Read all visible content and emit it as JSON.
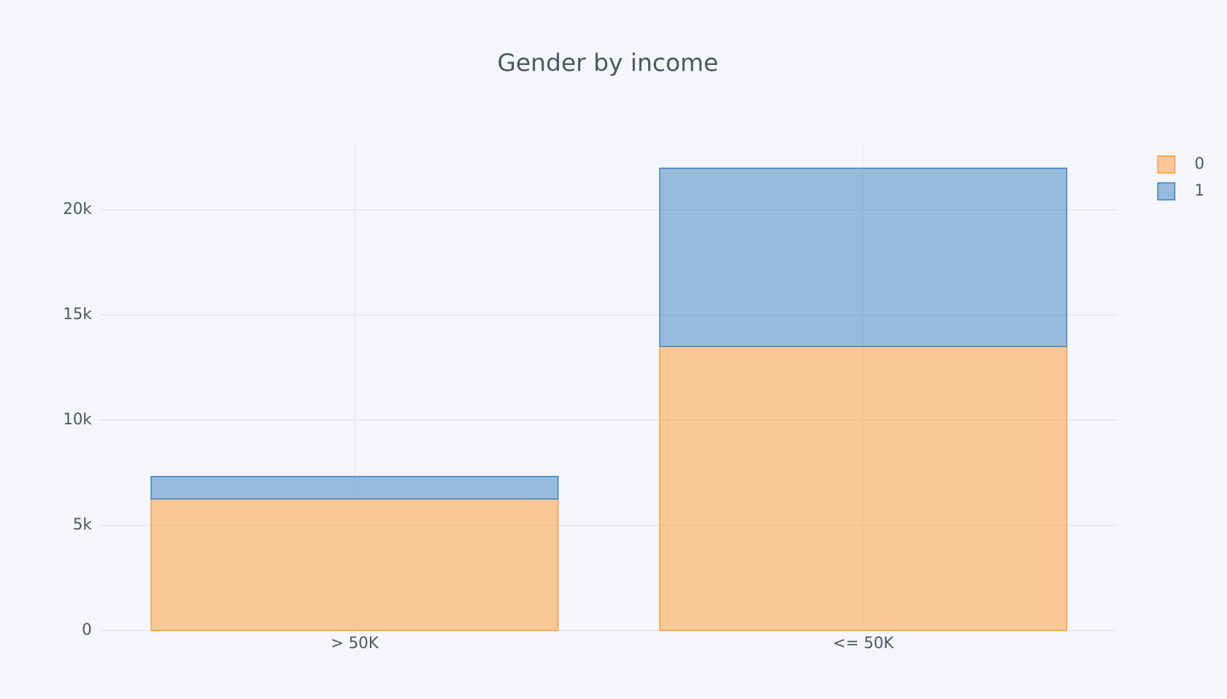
{
  "chart_data": {
    "type": "stacked_bar",
    "title": "Gender by income",
    "categories": [
      "> 50K",
      "<= 50K"
    ],
    "series": [
      {
        "name": "0",
        "color": "#ff9933",
        "values": [
          6250,
          13500
        ]
      },
      {
        "name": "1",
        "color": "#3780bf",
        "values": [
          1070,
          8470
        ]
      }
    ],
    "ylim": [
      0,
      23120
    ],
    "yticks": [
      0,
      {
        "value": 5000,
        "label": "5k"
      },
      {
        "value": 10000,
        "label": "10k"
      },
      {
        "value": 15000,
        "label": "15k"
      },
      {
        "value": 20000,
        "label": "20k"
      }
    ],
    "grid": true,
    "legend": "right"
  }
}
